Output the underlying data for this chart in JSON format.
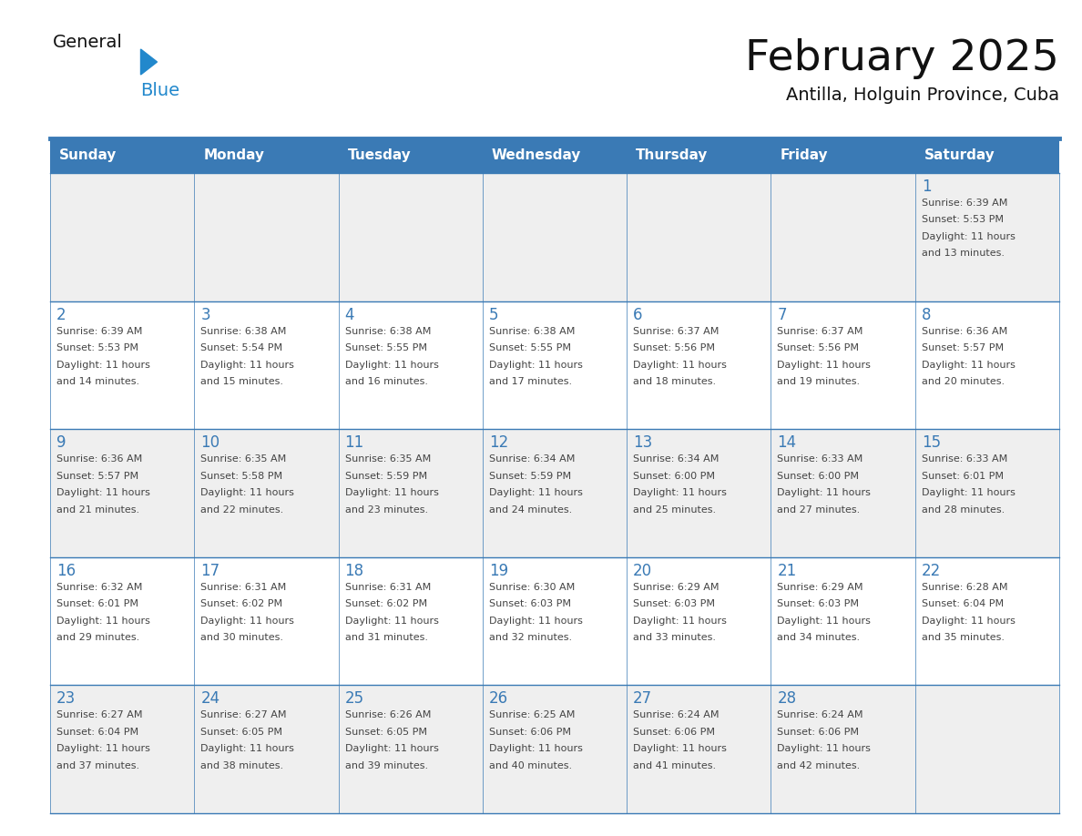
{
  "title": "February 2025",
  "subtitle": "Antilla, Holguin Province, Cuba",
  "header_bg_color": "#3a7ab5",
  "header_text_color": "#ffffff",
  "day_names": [
    "Sunday",
    "Monday",
    "Tuesday",
    "Wednesday",
    "Thursday",
    "Friday",
    "Saturday"
  ],
  "grid_line_color": "#3a7ab5",
  "alt_row_color": "#efefef",
  "white_color": "#ffffff",
  "text_color": "#444444",
  "number_color": "#3a7ab5",
  "background_color": "#ffffff",
  "logo_color": "#2288cc",
  "weeks": [
    [
      null,
      null,
      null,
      null,
      null,
      null,
      {
        "day": 1,
        "sunrise": "6:39 AM",
        "sunset": "5:53 PM",
        "daylight": "11 hours\nand 13 minutes."
      }
    ],
    [
      {
        "day": 2,
        "sunrise": "6:39 AM",
        "sunset": "5:53 PM",
        "daylight": "11 hours\nand 14 minutes."
      },
      {
        "day": 3,
        "sunrise": "6:38 AM",
        "sunset": "5:54 PM",
        "daylight": "11 hours\nand 15 minutes."
      },
      {
        "day": 4,
        "sunrise": "6:38 AM",
        "sunset": "5:55 PM",
        "daylight": "11 hours\nand 16 minutes."
      },
      {
        "day": 5,
        "sunrise": "6:38 AM",
        "sunset": "5:55 PM",
        "daylight": "11 hours\nand 17 minutes."
      },
      {
        "day": 6,
        "sunrise": "6:37 AM",
        "sunset": "5:56 PM",
        "daylight": "11 hours\nand 18 minutes."
      },
      {
        "day": 7,
        "sunrise": "6:37 AM",
        "sunset": "5:56 PM",
        "daylight": "11 hours\nand 19 minutes."
      },
      {
        "day": 8,
        "sunrise": "6:36 AM",
        "sunset": "5:57 PM",
        "daylight": "11 hours\nand 20 minutes."
      }
    ],
    [
      {
        "day": 9,
        "sunrise": "6:36 AM",
        "sunset": "5:57 PM",
        "daylight": "11 hours\nand 21 minutes."
      },
      {
        "day": 10,
        "sunrise": "6:35 AM",
        "sunset": "5:58 PM",
        "daylight": "11 hours\nand 22 minutes."
      },
      {
        "day": 11,
        "sunrise": "6:35 AM",
        "sunset": "5:59 PM",
        "daylight": "11 hours\nand 23 minutes."
      },
      {
        "day": 12,
        "sunrise": "6:34 AM",
        "sunset": "5:59 PM",
        "daylight": "11 hours\nand 24 minutes."
      },
      {
        "day": 13,
        "sunrise": "6:34 AM",
        "sunset": "6:00 PM",
        "daylight": "11 hours\nand 25 minutes."
      },
      {
        "day": 14,
        "sunrise": "6:33 AM",
        "sunset": "6:00 PM",
        "daylight": "11 hours\nand 27 minutes."
      },
      {
        "day": 15,
        "sunrise": "6:33 AM",
        "sunset": "6:01 PM",
        "daylight": "11 hours\nand 28 minutes."
      }
    ],
    [
      {
        "day": 16,
        "sunrise": "6:32 AM",
        "sunset": "6:01 PM",
        "daylight": "11 hours\nand 29 minutes."
      },
      {
        "day": 17,
        "sunrise": "6:31 AM",
        "sunset": "6:02 PM",
        "daylight": "11 hours\nand 30 minutes."
      },
      {
        "day": 18,
        "sunrise": "6:31 AM",
        "sunset": "6:02 PM",
        "daylight": "11 hours\nand 31 minutes."
      },
      {
        "day": 19,
        "sunrise": "6:30 AM",
        "sunset": "6:03 PM",
        "daylight": "11 hours\nand 32 minutes."
      },
      {
        "day": 20,
        "sunrise": "6:29 AM",
        "sunset": "6:03 PM",
        "daylight": "11 hours\nand 33 minutes."
      },
      {
        "day": 21,
        "sunrise": "6:29 AM",
        "sunset": "6:03 PM",
        "daylight": "11 hours\nand 34 minutes."
      },
      {
        "day": 22,
        "sunrise": "6:28 AM",
        "sunset": "6:04 PM",
        "daylight": "11 hours\nand 35 minutes."
      }
    ],
    [
      {
        "day": 23,
        "sunrise": "6:27 AM",
        "sunset": "6:04 PM",
        "daylight": "11 hours\nand 37 minutes."
      },
      {
        "day": 24,
        "sunrise": "6:27 AM",
        "sunset": "6:05 PM",
        "daylight": "11 hours\nand 38 minutes."
      },
      {
        "day": 25,
        "sunrise": "6:26 AM",
        "sunset": "6:05 PM",
        "daylight": "11 hours\nand 39 minutes."
      },
      {
        "day": 26,
        "sunrise": "6:25 AM",
        "sunset": "6:06 PM",
        "daylight": "11 hours\nand 40 minutes."
      },
      {
        "day": 27,
        "sunrise": "6:24 AM",
        "sunset": "6:06 PM",
        "daylight": "11 hours\nand 41 minutes."
      },
      {
        "day": 28,
        "sunrise": "6:24 AM",
        "sunset": "6:06 PM",
        "daylight": "11 hours\nand 42 minutes."
      },
      null
    ]
  ]
}
